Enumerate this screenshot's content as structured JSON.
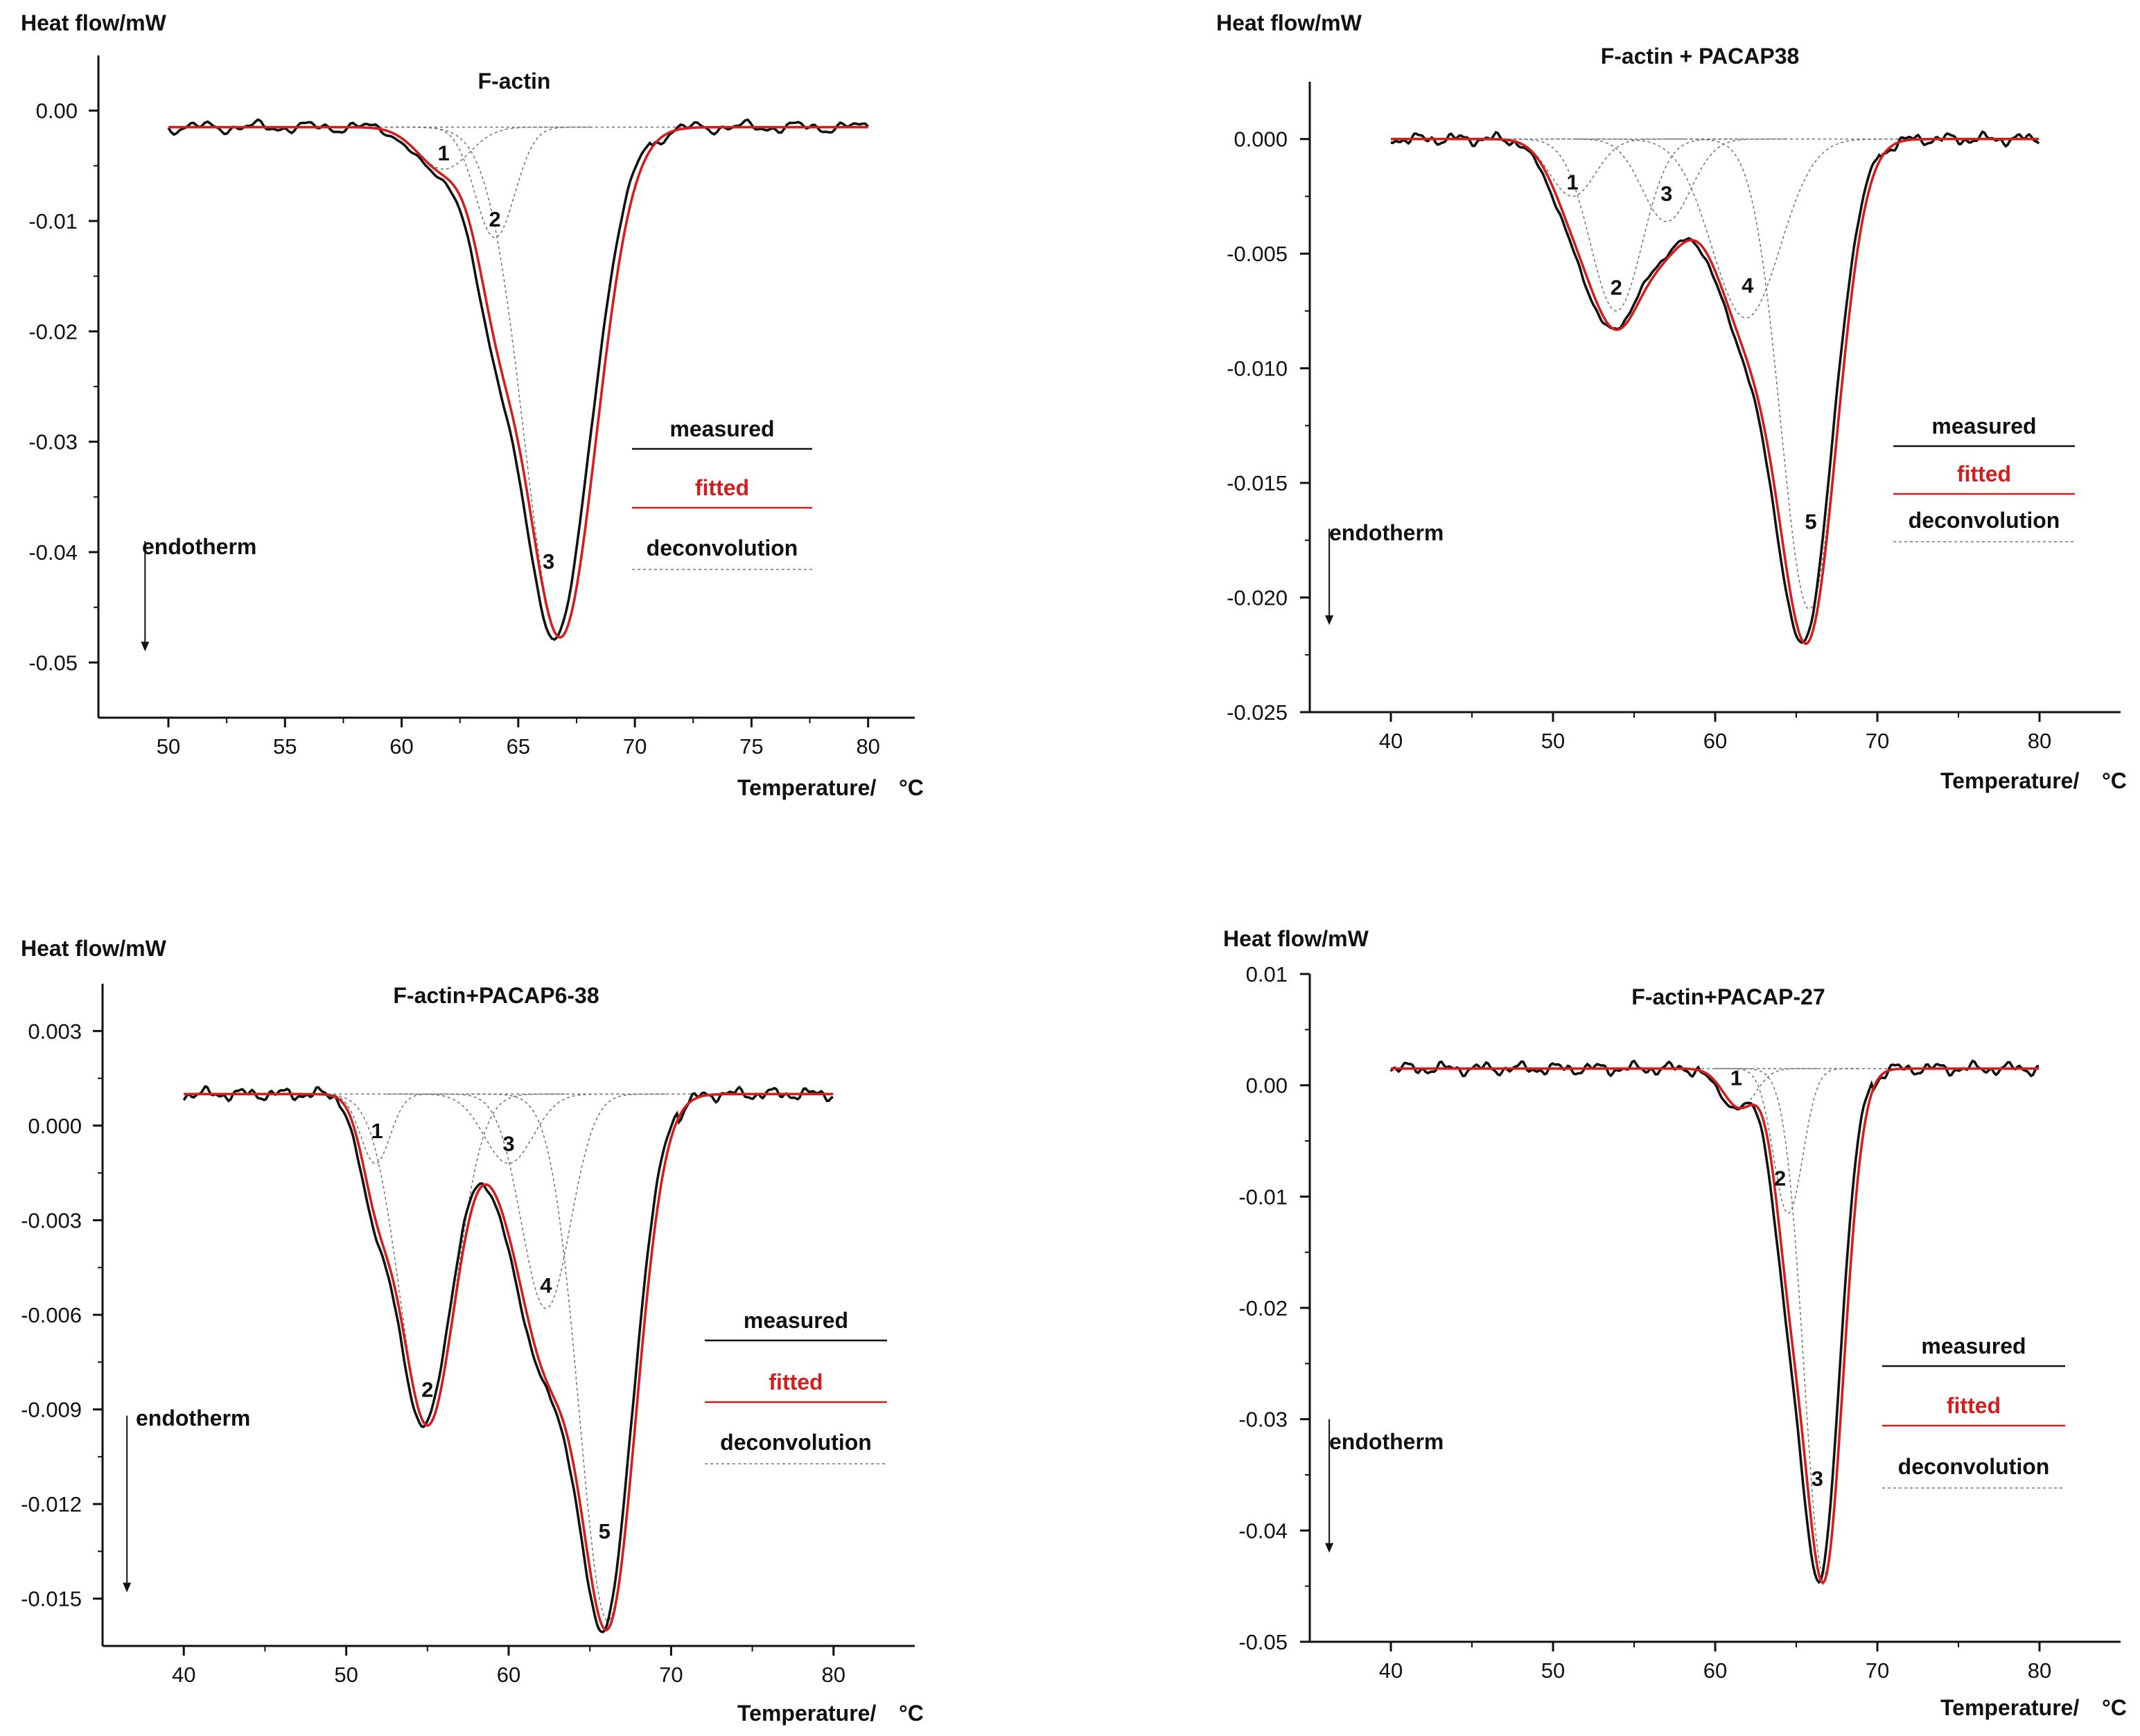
{
  "chart_data": [
    {
      "type": "line",
      "title": "F-actin",
      "xlabel": "Temperature/",
      "xlabel_unit": "°C",
      "ylabel": "Heat flow/mW",
      "xlim": [
        47,
        82
      ],
      "ylim": [
        -0.055,
        0.005
      ],
      "xticks": [
        50,
        55,
        60,
        65,
        70,
        75,
        80
      ],
      "xtick_labels": [
        "50",
        "55",
        "60",
        "65",
        "70",
        "75",
        "80"
      ],
      "yticks": [
        0,
        -0.01,
        -0.02,
        -0.03,
        -0.04,
        -0.05
      ],
      "ytick_labels": [
        "0.00",
        "-0.01",
        "-0.02",
        "-0.03",
        "-0.04",
        "-0.05"
      ],
      "baseline": -0.0015,
      "peaks": [
        {
          "label": "1",
          "center": 61.8,
          "sigma": 1.1,
          "depth": 0.0038
        },
        {
          "label": "2",
          "center": 64.0,
          "sigma": 0.85,
          "depth": 0.01
        },
        {
          "label": "3",
          "center": 66.8,
          "sigma": 1.55,
          "depth": 0.0462
        }
      ],
      "peak_label_positions": [
        {
          "x": 61.8,
          "y": -0.0045
        },
        {
          "x": 64.0,
          "y": -0.0105
        },
        {
          "x": 66.3,
          "y": -0.0415
        }
      ],
      "legend": {
        "measured": "measured",
        "fitted": "fitted",
        "deconvolution": "deconvolution",
        "placement": "right"
      },
      "annotation": "endotherm",
      "arrow_x": 49.0,
      "arrow_y": [
        -0.039,
        -0.049
      ]
    },
    {
      "type": "line",
      "title": "F-actin + PACAP38",
      "xlabel": "Temperature/",
      "xlabel_unit": "°C",
      "ylabel": "Heat flow/mW",
      "xlim": [
        35,
        85
      ],
      "ylim": [
        -0.025,
        0.0025
      ],
      "xticks": [
        40,
        50,
        60,
        70,
        80
      ],
      "xtick_labels": [
        "40",
        "50",
        "60",
        "70",
        "80"
      ],
      "yticks": [
        0,
        -0.005,
        -0.01,
        -0.015,
        -0.02,
        -0.025
      ],
      "ytick_labels": [
        "0.000",
        "-0.005",
        "-0.010",
        "-0.015",
        "-0.020",
        "-0.025"
      ],
      "baseline": 0.0,
      "peaks": [
        {
          "label": "1",
          "center": 51.2,
          "sigma": 1.4,
          "depth": 0.0025
        },
        {
          "label": "2",
          "center": 53.9,
          "sigma": 1.6,
          "depth": 0.0075
        },
        {
          "label": "3",
          "center": 57.0,
          "sigma": 1.5,
          "depth": 0.0036
        },
        {
          "label": "4",
          "center": 61.9,
          "sigma": 2.1,
          "depth": 0.0078
        },
        {
          "label": "5",
          "center": 65.8,
          "sigma": 1.75,
          "depth": 0.0205
        }
      ],
      "peak_label_positions": [
        {
          "x": 51.2,
          "y": -0.0022
        },
        {
          "x": 53.9,
          "y": -0.0068
        },
        {
          "x": 57.0,
          "y": -0.0027
        },
        {
          "x": 62.0,
          "y": -0.0067
        },
        {
          "x": 65.9,
          "y": -0.017
        }
      ],
      "legend": {
        "measured": "measured",
        "fitted": "fitted",
        "deconvolution": "deconvolution",
        "placement": "right"
      },
      "annotation": "endotherm",
      "arrow_x": 36.2,
      "arrow_y": [
        -0.017,
        -0.0212
      ]
    },
    {
      "type": "line",
      "title": "F-actin+PACAP6-38",
      "xlabel": "Temperature/",
      "xlabel_unit": "°C",
      "ylabel": "Heat flow/mW",
      "xlim": [
        35,
        85
      ],
      "ylim": [
        -0.0165,
        0.0045
      ],
      "xticks": [
        40,
        50,
        60,
        70,
        80
      ],
      "xtick_labels": [
        "40",
        "50",
        "60",
        "70",
        "80"
      ],
      "yticks": [
        0.003,
        0,
        -0.003,
        -0.006,
        -0.009,
        -0.012,
        -0.015
      ],
      "ytick_labels": [
        "0.003",
        "0.000",
        "-0.003",
        "-0.006",
        "-0.009",
        "-0.012",
        "-0.015"
      ],
      "baseline": 0.001,
      "peaks": [
        {
          "label": "1",
          "center": 51.8,
          "sigma": 0.9,
          "depth": 0.0022
        },
        {
          "label": "2",
          "center": 55.0,
          "sigma": 1.7,
          "depth": 0.0105
        },
        {
          "label": "3",
          "center": 60.0,
          "sigma": 1.5,
          "depth": 0.0022
        },
        {
          "label": "4",
          "center": 62.3,
          "sigma": 1.5,
          "depth": 0.0068
        },
        {
          "label": "5",
          "center": 66.1,
          "sigma": 1.75,
          "depth": 0.0167
        }
      ],
      "peak_label_positions": [
        {
          "x": 51.9,
          "y": -0.0004
        },
        {
          "x": 55.0,
          "y": -0.0086
        },
        {
          "x": 60.0,
          "y": -0.0008
        },
        {
          "x": 62.3,
          "y": -0.0053
        },
        {
          "x": 65.9,
          "y": -0.0131
        }
      ],
      "legend": {
        "measured": "measured",
        "fitted": "fitted",
        "deconvolution": "deconvolution",
        "placement": "right"
      },
      "annotation": "endotherm",
      "arrow_x": 36.5,
      "arrow_y": [
        -0.0092,
        -0.0148
      ]
    },
    {
      "type": "line",
      "title": "F-actin+PACAP-27",
      "xlabel": "Temperature/",
      "xlabel_unit": "°C",
      "ylabel": "Heat flow/mW",
      "xlim": [
        35,
        85
      ],
      "ylim": [
        -0.05,
        0.01
      ],
      "xticks": [
        40,
        50,
        60,
        70,
        80
      ],
      "xtick_labels": [
        "40",
        "50",
        "60",
        "70",
        "80"
      ],
      "yticks": [
        0.01,
        0,
        -0.01,
        -0.02,
        -0.03,
        -0.04,
        -0.05
      ],
      "ytick_labels": [
        "0.01",
        "0.00",
        "-0.01",
        "-0.02",
        "-0.03",
        "-0.04",
        "-0.05"
      ],
      "baseline": 0.0015,
      "peaks": [
        {
          "label": "1",
          "center": 61.5,
          "sigma": 1.0,
          "depth": 0.0035
        },
        {
          "label": "2",
          "center": 64.5,
          "sigma": 0.9,
          "depth": 0.013
        },
        {
          "label": "3",
          "center": 66.7,
          "sigma": 1.2,
          "depth": 0.0455
        }
      ],
      "peak_label_positions": [
        {
          "x": 61.3,
          "y": 0.0
        },
        {
          "x": 64.0,
          "y": -0.009
        },
        {
          "x": 66.3,
          "y": -0.036
        }
      ],
      "legend": {
        "measured": "measured",
        "fitted": "fitted",
        "deconvolution": "deconvolution",
        "placement": "right"
      },
      "annotation": "endotherm",
      "arrow_x": 36.2,
      "arrow_y": [
        -0.03,
        -0.042
      ]
    }
  ],
  "colors": {
    "measured": "#111111",
    "fitted": "#d21e1e",
    "deconvolution": "#777777",
    "axis": "#111111"
  }
}
